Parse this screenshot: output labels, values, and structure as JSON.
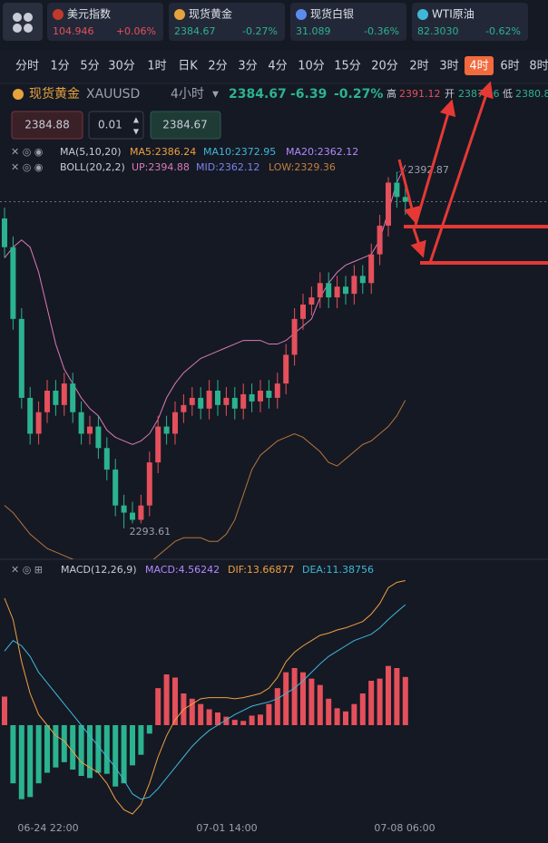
{
  "tickers": [
    {
      "name": "美元指数",
      "price": "104.946",
      "change": "+0.06%"
    },
    {
      "name": "现货黄金",
      "price": "2384.67",
      "change": "-0.27%"
    },
    {
      "name": "现货白银",
      "price": "31.089",
      "change": "-0.36%"
    },
    {
      "name": "WTI原油",
      "price": "82.3030",
      "change": "-0.62%"
    }
  ],
  "timeframes": {
    "items": [
      "分时",
      "1分",
      "5分",
      "30分",
      "1时",
      "日K",
      "2分",
      "3分",
      "4分",
      "10分",
      "15分",
      "20分",
      "2时",
      "3时",
      "4时",
      "6时",
      "8时"
    ],
    "active": 14
  },
  "symbol": {
    "name": "现货黄金",
    "code": "XAUUSD",
    "period": "4小时",
    "price": "2384.67",
    "change": "-6.39",
    "change_pct": "-0.27%",
    "high_label": "高",
    "high": "2391.12",
    "open_label": "开",
    "open": "2387.46",
    "low_label": "低",
    "low": "2380.8"
  },
  "order": {
    "sell": "2384.88",
    "lots": "0.01",
    "buy": "2384.67"
  },
  "indicators": {
    "ma": {
      "name": "MA(5,10,20)",
      "ma5": "MA5:2386.24",
      "ma10": "MA10:2372.95",
      "ma20": "MA20:2362.12"
    },
    "boll": {
      "name": "BOLL(20,2,2)",
      "up": "UP:2394.88",
      "mid": "MID:2362.12",
      "low": "LOW:2329.36"
    },
    "macd": {
      "name": "MACD(12,26,9)",
      "macd": "MACD:4.56242",
      "dif": "DIF:13.66877",
      "dea": "DEA:11.38756"
    }
  },
  "price_chart": {
    "ylim": [
      2285,
      2403
    ],
    "up_color": "#e4505b",
    "down_color": "#2bb38f",
    "candles": {
      "open": [
        2380,
        2372,
        2352,
        2330,
        2320,
        2326,
        2332,
        2328,
        2334,
        2326,
        2320,
        2322,
        2316,
        2310,
        2300,
        2298,
        2296,
        2300,
        2312,
        2322,
        2320,
        2326,
        2328,
        2330,
        2327,
        2332,
        2328,
        2330,
        2327,
        2331,
        2329,
        2332,
        2330,
        2334,
        2342,
        2352,
        2356,
        2358,
        2362,
        2358,
        2361,
        2359,
        2364,
        2362,
        2370,
        2378,
        2390,
        2386
      ],
      "high": [
        2383,
        2375,
        2355,
        2333,
        2329,
        2335,
        2335,
        2337,
        2337,
        2329,
        2325,
        2325,
        2319,
        2313,
        2303,
        2301,
        2303,
        2315,
        2325,
        2325,
        2329,
        2331,
        2333,
        2333,
        2335,
        2335,
        2333,
        2333,
        2334,
        2334,
        2335,
        2335,
        2337,
        2345,
        2355,
        2359,
        2361,
        2365,
        2365,
        2364,
        2364,
        2367,
        2367,
        2373,
        2381,
        2391.5,
        2392.87,
        2389
      ],
      "low": [
        2369,
        2349,
        2327,
        2317,
        2317,
        2323,
        2325,
        2325,
        2323,
        2317,
        2317,
        2313,
        2307,
        2297,
        2293.61,
        2295,
        2295,
        2297,
        2309,
        2317,
        2317,
        2323,
        2325,
        2324,
        2324,
        2325,
        2325,
        2324,
        2324,
        2326,
        2326,
        2327,
        2327,
        2331,
        2339,
        2349,
        2353,
        2355,
        2355,
        2355,
        2356,
        2356,
        2359,
        2359,
        2367,
        2375,
        2383,
        2381
      ],
      "close": [
        2372,
        2352,
        2330,
        2320,
        2326,
        2332,
        2328,
        2334,
        2326,
        2320,
        2322,
        2316,
        2310,
        2300,
        2298,
        2296,
        2300,
        2312,
        2322,
        2320,
        2326,
        2328,
        2330,
        2327,
        2332,
        2328,
        2330,
        2327,
        2331,
        2329,
        2332,
        2330,
        2334,
        2342,
        2352,
        2356,
        2358,
        2362,
        2358,
        2361,
        2359,
        2364,
        2362,
        2370,
        2378,
        2390,
        2386,
        2384.67
      ]
    },
    "boll_up": {
      "color": "#d97bb8",
      "values": [
        2369,
        2372,
        2374,
        2372,
        2365,
        2355,
        2345,
        2338,
        2334,
        2330,
        2327,
        2325,
        2321,
        2319,
        2318,
        2317,
        2318,
        2320,
        2324,
        2330,
        2334,
        2337,
        2339,
        2341,
        2342,
        2343,
        2344,
        2345,
        2346,
        2346,
        2346,
        2345,
        2345,
        2346,
        2348,
        2350,
        2352,
        2358,
        2362,
        2365,
        2367,
        2368,
        2369,
        2370,
        2374,
        2382,
        2390,
        2394.88
      ]
    },
    "boll_low": {
      "color": "#b8753c",
      "values": [
        2300,
        2298,
        2295,
        2292,
        2290,
        2288,
        2287,
        2286,
        2285,
        2284,
        2283,
        2282,
        2280,
        2279,
        2279,
        2280,
        2282,
        2284,
        2286,
        2288,
        2290,
        2291,
        2291,
        2291,
        2290,
        2290,
        2292,
        2296,
        2303,
        2310,
        2314,
        2316,
        2318,
        2319,
        2320,
        2319,
        2317,
        2315,
        2312,
        2311,
        2313,
        2315,
        2317,
        2318,
        2320,
        2322,
        2325,
        2329.36
      ]
    }
  },
  "macd_chart": {
    "ylim": [
      -9,
      15
    ],
    "hist": [
      2.7,
      -5.5,
      -7,
      -6.8,
      -5.5,
      -4.5,
      -4,
      -3.5,
      -4.2,
      -4.8,
      -5,
      -4.5,
      -4.6,
      -5.8,
      -5.5,
      -3.8,
      -2.8,
      -0.8,
      3.5,
      4.8,
      4.5,
      3,
      2.5,
      2,
      1.5,
      1.2,
      0.8,
      0.5,
      0.4,
      0.9,
      1,
      2,
      3.5,
      5,
      5.4,
      5,
      4.4,
      3.8,
      2.5,
      1.6,
      1.3,
      2,
      3,
      4.2,
      4.4,
      5.6,
      5.4,
      4.56
    ],
    "dif": {
      "color": "#f0a040",
      "values": [
        12,
        10,
        6,
        3,
        1,
        0,
        -1,
        -1.5,
        -2.5,
        -3.5,
        -4,
        -4.5,
        -5.5,
        -7,
        -8,
        -8.4,
        -7.5,
        -5.5,
        -3,
        -1,
        0.5,
        1.5,
        2,
        2.5,
        2.6,
        2.6,
        2.6,
        2.5,
        2.6,
        2.8,
        3,
        3.5,
        4.5,
        6,
        6.9,
        7.5,
        8,
        8.5,
        8.7,
        9,
        9.2,
        9.5,
        9.8,
        10.5,
        11.5,
        13,
        13.5,
        13.67
      ]
    },
    "dea": {
      "color": "#3fb8d8",
      "values": [
        7,
        8,
        7.5,
        6.5,
        5,
        4,
        3,
        2,
        1,
        0,
        -1,
        -2,
        -3,
        -4,
        -5.2,
        -6.5,
        -7,
        -6.8,
        -6,
        -5,
        -4,
        -3,
        -2,
        -1.2,
        -0.5,
        0,
        0.5,
        1,
        1.4,
        1.8,
        2,
        2.2,
        2.5,
        3,
        3.5,
        4.2,
        5,
        5.8,
        6.5,
        7,
        7.5,
        8,
        8.3,
        8.6,
        9.2,
        10,
        10.7,
        11.38756
      ]
    }
  },
  "dates": [
    "06-24 22:00",
    "07-01 14:00",
    "07-08 06:00"
  ]
}
